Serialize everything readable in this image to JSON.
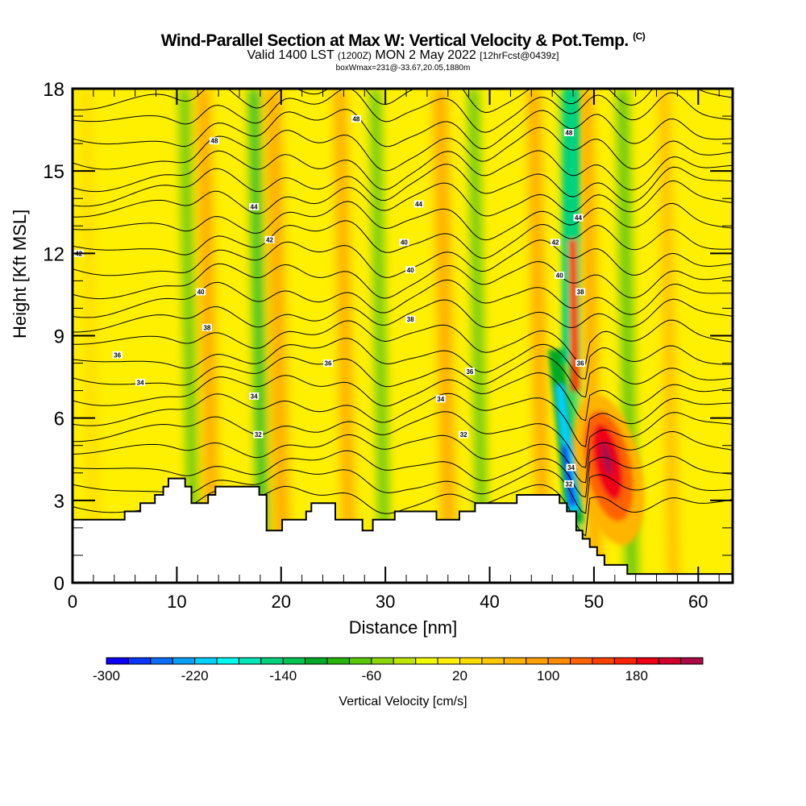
{
  "header": {
    "title": "Wind-Parallel Section at Max W: Vertical Velocity & Pot.Temp.",
    "copyright_mark": "(C)",
    "valid_prefix": "Valid 1400 LST",
    "valid_utc": "(1200Z)",
    "valid_date": "MON 2 May 2022",
    "forecast_info": "[12hrFcst@0439z]",
    "box_info": "boxWmax=231@-33.67,20.05,1880m"
  },
  "chart_data": {
    "type": "heatmap",
    "title": "Wind-Parallel Section at Max W: Vertical Velocity & Pot.Temp.",
    "xlabel": "Distance [nm]",
    "ylabel": "Height [Kft MSL]",
    "xlim": [
      0,
      63.3
    ],
    "ylim": [
      0,
      18
    ],
    "x_ticks": [
      "0",
      "10",
      "20",
      "30",
      "40",
      "50",
      "60"
    ],
    "y_ticks": [
      "0",
      "3",
      "6",
      "9",
      "12",
      "15",
      "18"
    ],
    "x_tick_values": [
      0,
      10,
      20,
      30,
      40,
      50,
      60
    ],
    "y_tick_values": [
      0,
      3,
      6,
      9,
      12,
      15,
      18
    ],
    "x_minor_step": 2,
    "y_minor_step": 1,
    "colorbar": {
      "label": "Vertical Velocity [cm/s]",
      "min": -300,
      "max": 240,
      "step": 20,
      "tick_labels": [
        "-300",
        "-220",
        "-140",
        "-60",
        "20",
        "100",
        "180"
      ],
      "tick_values": [
        -300,
        -220,
        -140,
        -60,
        20,
        100,
        180
      ],
      "colors": [
        "#0a00f5",
        "#0a37fa",
        "#0a6ef8",
        "#0aa0f8",
        "#00d2fa",
        "#00faf0",
        "#00e6b4",
        "#00d27d",
        "#00c350",
        "#00aa28",
        "#28b40a",
        "#5ac80a",
        "#8cd70a",
        "#bee600",
        "#f0fa00",
        "#fff000",
        "#ffdc00",
        "#ffc800",
        "#ffb400",
        "#ffa000",
        "#ff8c00",
        "#ff6400",
        "#ff4100",
        "#ff2300",
        "#f00014",
        "#d2002d",
        "#aa0a46"
      ]
    },
    "bands": [
      {
        "x": 2,
        "w": 3,
        "v": 0
      },
      {
        "x": 11.5,
        "w": 1.2,
        "v": -60
      },
      {
        "x": 13.3,
        "w": 1.5,
        "v": 60
      },
      {
        "x": 18.2,
        "w": 1.1,
        "v": -100
      },
      {
        "x": 20,
        "w": 1.6,
        "v": 60
      },
      {
        "x": 26.4,
        "w": 1.3,
        "v": 60
      },
      {
        "x": 29.8,
        "w": 1.2,
        "v": -60
      },
      {
        "x": 36,
        "w": 1.5,
        "v": 60
      },
      {
        "x": 39.2,
        "w": 1.2,
        "v": -60
      },
      {
        "x": 45,
        "w": 1.4,
        "v": 60
      },
      {
        "x": 48.2,
        "w": 1.2,
        "v": -140
      },
      {
        "x": 50,
        "w": 1.4,
        "v": 60
      },
      {
        "x": 53.5,
        "w": 1.4,
        "v": -60
      },
      {
        "x": 57.5,
        "w": 1.2,
        "v": 40
      }
    ],
    "features": [
      {
        "name": "strong-downdraft",
        "x": 47.5,
        "y": 3.8,
        "v": -300
      },
      {
        "name": "strong-updraft",
        "x": 51.2,
        "y": 4.6,
        "v": 231
      },
      {
        "name": "updraft-column",
        "x": 47.8,
        "y": 10,
        "v": 160
      }
    ],
    "terrain": [
      [
        0,
        2.3
      ],
      [
        5,
        2.3
      ],
      [
        5,
        2.6
      ],
      [
        6.5,
        2.6
      ],
      [
        6.5,
        2.9
      ],
      [
        7.9,
        2.9
      ],
      [
        7.9,
        3.2
      ],
      [
        8.7,
        3.2
      ],
      [
        8.7,
        3.5
      ],
      [
        9.2,
        3.5
      ],
      [
        9.2,
        3.8
      ],
      [
        10.8,
        3.8
      ],
      [
        10.8,
        3.5
      ],
      [
        11.4,
        3.5
      ],
      [
        11.4,
        2.9
      ],
      [
        13,
        2.9
      ],
      [
        13,
        3.2
      ],
      [
        13.7,
        3.2
      ],
      [
        13.7,
        3.5
      ],
      [
        17.9,
        3.5
      ],
      [
        17.9,
        3.2
      ],
      [
        18.6,
        3.2
      ],
      [
        18.6,
        1.9
      ],
      [
        20.1,
        1.9
      ],
      [
        20.1,
        2.3
      ],
      [
        22.4,
        2.3
      ],
      [
        22.4,
        2.6
      ],
      [
        22.9,
        2.6
      ],
      [
        22.9,
        2.9
      ],
      [
        25.2,
        2.9
      ],
      [
        25.2,
        2.3
      ],
      [
        27.8,
        2.3
      ],
      [
        27.8,
        1.9
      ],
      [
        28.8,
        1.9
      ],
      [
        28.8,
        2.3
      ],
      [
        30.9,
        2.3
      ],
      [
        30.9,
        2.6
      ],
      [
        34.9,
        2.6
      ],
      [
        34.9,
        2.3
      ],
      [
        37.1,
        2.3
      ],
      [
        37.1,
        2.6
      ],
      [
        38.6,
        2.6
      ],
      [
        38.6,
        2.9
      ],
      [
        42.6,
        2.9
      ],
      [
        42.6,
        3.2
      ],
      [
        46.7,
        3.2
      ],
      [
        46.7,
        2.9
      ],
      [
        47.4,
        2.9
      ],
      [
        47.4,
        2.6
      ],
      [
        48.3,
        2.6
      ],
      [
        48.3,
        1.9
      ],
      [
        48.9,
        1.9
      ],
      [
        48.9,
        1.6
      ],
      [
        49.6,
        1.6
      ],
      [
        49.6,
        1.3
      ],
      [
        50.3,
        1.3
      ],
      [
        50.3,
        1.0
      ],
      [
        51,
        1.0
      ],
      [
        51,
        0.65
      ],
      [
        53.2,
        0.65
      ],
      [
        53.2,
        0.32
      ],
      [
        63.3,
        0.32
      ]
    ],
    "contour_labels": [
      {
        "text": "48",
        "x": 13.6,
        "y": 16.1
      },
      {
        "text": "48",
        "x": 27.2,
        "y": 16.9
      },
      {
        "text": "48",
        "x": 47.6,
        "y": 16.4
      },
      {
        "text": "44",
        "x": 17.4,
        "y": 13.7
      },
      {
        "text": "44",
        "x": 33.2,
        "y": 13.8
      },
      {
        "text": "44",
        "x": 48.5,
        "y": 13.3
      },
      {
        "text": "42",
        "x": 0.6,
        "y": 12.0
      },
      {
        "text": "42",
        "x": 18.9,
        "y": 12.5
      },
      {
        "text": "42",
        "x": 46.3,
        "y": 12.4
      },
      {
        "text": "40",
        "x": 31.8,
        "y": 12.4
      },
      {
        "text": "40",
        "x": 32.4,
        "y": 11.4
      },
      {
        "text": "40",
        "x": 12.3,
        "y": 10.6
      },
      {
        "text": "40",
        "x": 46.7,
        "y": 11.2
      },
      {
        "text": "38",
        "x": 12.9,
        "y": 9.3
      },
      {
        "text": "38",
        "x": 32.4,
        "y": 9.6
      },
      {
        "text": "38",
        "x": 48.7,
        "y": 10.6
      },
      {
        "text": "36",
        "x": 4.3,
        "y": 8.3
      },
      {
        "text": "36",
        "x": 24.5,
        "y": 8.0
      },
      {
        "text": "36",
        "x": 48.7,
        "y": 8.0
      },
      {
        "text": "36",
        "x": 38.1,
        "y": 7.7
      },
      {
        "text": "34",
        "x": 6.5,
        "y": 7.3
      },
      {
        "text": "34",
        "x": 17.4,
        "y": 6.8
      },
      {
        "text": "34",
        "x": 35.3,
        "y": 6.7
      },
      {
        "text": "34",
        "x": 47.8,
        "y": 4.2
      },
      {
        "text": "32",
        "x": 17.8,
        "y": 5.4
      },
      {
        "text": "32",
        "x": 37.5,
        "y": 5.4
      },
      {
        "text": "32",
        "x": 47.6,
        "y": 3.6
      }
    ],
    "contour_levels": [
      56,
      54,
      52,
      50,
      48,
      47,
      46,
      45,
      44,
      43,
      42,
      41,
      40,
      39,
      38,
      37,
      36,
      35,
      34,
      33,
      32,
      31,
      30
    ],
    "contour_base_heights": [
      17.7,
      17.1,
      16.4,
      15.7,
      15.0,
      14.4,
      13.8,
      13.1,
      12.4,
      11.7,
      11.0,
      10.3,
      9.6,
      8.9,
      8.2,
      7.6,
      7.0,
      6.3,
      5.6,
      4.9,
      4.2,
      3.6,
      3.0
    ]
  }
}
